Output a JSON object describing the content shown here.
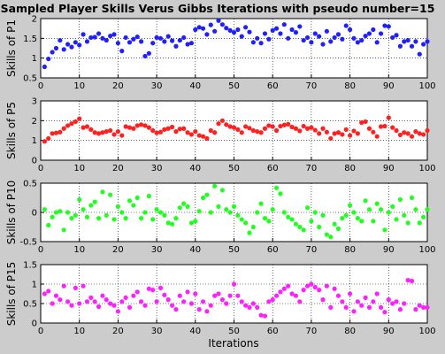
{
  "figure": {
    "title": "Sampled Player Skills Verus Gibbs Iterations with pseudo number=15",
    "xlabel": "Iterations"
  },
  "chart_data": [
    {
      "type": "scatter",
      "ylabel": "Skills of P1",
      "xlim": [
        0,
        100
      ],
      "ylim": [
        0.5,
        2
      ],
      "xticks": [
        "0",
        "10",
        "20",
        "30",
        "40",
        "50",
        "60",
        "70",
        "80",
        "90",
        "100"
      ],
      "yticks": [
        "0.5",
        "1",
        "1.5",
        "2"
      ],
      "grid": true,
      "color": "#2020ff",
      "x": [
        1,
        2,
        3,
        4,
        5,
        6,
        7,
        8,
        9,
        10,
        11,
        12,
        13,
        14,
        15,
        16,
        17,
        18,
        19,
        20,
        21,
        22,
        23,
        24,
        25,
        26,
        27,
        28,
        29,
        30,
        31,
        32,
        33,
        34,
        35,
        36,
        37,
        38,
        39,
        40,
        41,
        42,
        43,
        44,
        45,
        46,
        47,
        48,
        49,
        50,
        51,
        52,
        53,
        54,
        55,
        56,
        57,
        58,
        59,
        60,
        61,
        62,
        63,
        64,
        65,
        66,
        67,
        68,
        69,
        70,
        71,
        72,
        73,
        74,
        75,
        76,
        77,
        78,
        79,
        80,
        81,
        82,
        83,
        84,
        85,
        86,
        87,
        88,
        89,
        90,
        91,
        92,
        93,
        94,
        95,
        96,
        97,
        98,
        99,
        100
      ],
      "y": [
        0.78,
        0.98,
        1.15,
        1.25,
        1.45,
        1.22,
        1.35,
        1.28,
        1.4,
        1.33,
        1.6,
        1.42,
        1.52,
        1.53,
        1.62,
        1.5,
        1.45,
        1.56,
        1.6,
        1.38,
        1.18,
        1.52,
        1.4,
        1.48,
        1.54,
        1.42,
        1.05,
        1.12,
        1.38,
        1.52,
        1.5,
        1.42,
        1.55,
        1.44,
        1.3,
        1.45,
        1.52,
        1.35,
        1.38,
        1.72,
        1.78,
        1.75,
        1.6,
        1.84,
        1.68,
        1.95,
        1.85,
        1.76,
        1.7,
        1.65,
        1.72,
        1.55,
        1.78,
        1.66,
        1.4,
        1.5,
        1.38,
        1.62,
        1.48,
        1.7,
        1.75,
        1.62,
        1.85,
        1.5,
        1.72,
        1.65,
        1.8,
        1.45,
        1.52,
        1.4,
        1.62,
        1.55,
        1.35,
        1.68,
        1.42,
        1.52,
        1.6,
        1.48,
        1.82,
        1.72,
        1.5,
        1.4,
        1.45,
        1.56,
        1.62,
        1.72,
        1.4,
        1.62,
        1.82,
        1.8,
        1.52,
        1.58,
        1.3,
        1.42,
        1.45,
        1.3,
        1.42,
        1.1,
        1.35,
        1.42
      ]
    },
    {
      "type": "scatter",
      "ylabel": "Skills of P5",
      "xlim": [
        0,
        100
      ],
      "ylim": [
        0,
        3
      ],
      "xticks": [
        "0",
        "10",
        "20",
        "30",
        "40",
        "50",
        "60",
        "70",
        "80",
        "90",
        "100"
      ],
      "yticks": [
        "0",
        "1",
        "2",
        "3"
      ],
      "grid": true,
      "color": "#ff2020",
      "x": [
        1,
        2,
        3,
        4,
        5,
        6,
        7,
        8,
        9,
        10,
        11,
        12,
        13,
        14,
        15,
        16,
        17,
        18,
        19,
        20,
        21,
        22,
        23,
        24,
        25,
        26,
        27,
        28,
        29,
        30,
        31,
        32,
        33,
        34,
        35,
        36,
        37,
        38,
        39,
        40,
        41,
        42,
        43,
        44,
        45,
        46,
        47,
        48,
        49,
        50,
        51,
        52,
        53,
        54,
        55,
        56,
        57,
        58,
        59,
        60,
        61,
        62,
        63,
        64,
        65,
        66,
        67,
        68,
        69,
        70,
        71,
        72,
        73,
        74,
        75,
        76,
        77,
        78,
        79,
        80,
        81,
        82,
        83,
        84,
        85,
        86,
        87,
        88,
        89,
        90,
        91,
        92,
        93,
        94,
        95,
        96,
        97,
        98,
        99,
        100
      ],
      "y": [
        0.95,
        1.1,
        1.35,
        1.38,
        1.42,
        1.6,
        1.75,
        1.85,
        1.95,
        2.1,
        1.65,
        1.7,
        1.55,
        1.4,
        1.35,
        1.4,
        1.45,
        1.5,
        1.3,
        1.45,
        1.25,
        1.7,
        1.65,
        1.6,
        1.75,
        1.8,
        1.75,
        1.65,
        1.5,
        1.38,
        1.42,
        1.55,
        1.6,
        1.68,
        1.45,
        1.58,
        1.6,
        1.4,
        1.3,
        1.45,
        1.25,
        1.2,
        1.1,
        1.5,
        1.4,
        1.85,
        2.0,
        1.8,
        1.7,
        1.65,
        1.55,
        1.4,
        1.7,
        1.62,
        1.5,
        1.45,
        1.4,
        1.6,
        1.75,
        1.7,
        1.5,
        1.72,
        1.78,
        1.82,
        1.68,
        1.6,
        1.48,
        1.72,
        1.6,
        1.65,
        1.52,
        1.35,
        1.6,
        1.42,
        1.1,
        1.35,
        1.4,
        1.3,
        1.55,
        1.25,
        1.48,
        1.35,
        1.9,
        1.95,
        1.6,
        1.42,
        1.2,
        1.7,
        1.72,
        2.15,
        1.65,
        1.5,
        1.28,
        1.4,
        1.35,
        1.2,
        1.45,
        1.35,
        1.3,
        1.5
      ]
    },
    {
      "type": "scatter",
      "ylabel": "Skills of P10",
      "xlim": [
        0,
        100
      ],
      "ylim": [
        -0.5,
        0.5
      ],
      "xticks": [
        "0",
        "10",
        "20",
        "30",
        "40",
        "50",
        "60",
        "70",
        "80",
        "90",
        "100"
      ],
      "yticks": [
        "-0.5",
        "0",
        "0.5"
      ],
      "grid": true,
      "color": "#20ff20",
      "x": [
        1,
        2,
        3,
        4,
        5,
        6,
        7,
        8,
        9,
        10,
        11,
        12,
        13,
        14,
        15,
        16,
        17,
        18,
        19,
        20,
        21,
        22,
        23,
        24,
        25,
        26,
        27,
        28,
        29,
        30,
        31,
        32,
        33,
        34,
        35,
        36,
        37,
        38,
        39,
        40,
        41,
        42,
        43,
        44,
        45,
        46,
        47,
        48,
        49,
        50,
        51,
        52,
        53,
        54,
        55,
        56,
        57,
        58,
        59,
        60,
        61,
        62,
        63,
        64,
        65,
        66,
        67,
        68,
        69,
        70,
        71,
        72,
        73,
        74,
        75,
        76,
        77,
        78,
        79,
        80,
        81,
        82,
        83,
        84,
        85,
        86,
        87,
        88,
        89,
        90,
        91,
        92,
        93,
        94,
        95,
        96,
        97,
        98,
        99,
        100
      ],
      "y": [
        0.05,
        -0.22,
        -0.08,
        0.0,
        0.02,
        -0.3,
        0.0,
        -0.1,
        -0.05,
        0.22,
        0.05,
        -0.08,
        0.12,
        0.18,
        -0.1,
        0.35,
        -0.05,
        0.3,
        -0.12,
        0.1,
        0.0,
        -0.1,
        0.2,
        0.12,
        0.25,
        -0.1,
        0.0,
        0.28,
        -0.12,
        0.05,
        0.0,
        -0.05,
        -0.18,
        -0.2,
        -0.1,
        0.08,
        0.15,
        0.1,
        -0.18,
        -0.15,
        0.02,
        0.25,
        0.3,
        0.0,
        0.45,
        0.1,
        0.38,
        0.05,
        0.0,
        0.1,
        -0.05,
        -0.12,
        -0.18,
        -0.35,
        -0.25,
        0.0,
        0.15,
        -0.1,
        -0.15,
        0.05,
        0.42,
        0.32,
        0.0,
        -0.08,
        -0.12,
        -0.2,
        -0.25,
        -0.3,
        0.08,
        -0.15,
        0.0,
        -0.25,
        -0.05,
        -0.38,
        -0.42,
        -0.2,
        -0.28,
        -0.1,
        -0.05,
        0.12,
        0.0,
        -0.1,
        -0.15,
        0.2,
        0.05,
        -0.15,
        0.15,
        0.05,
        -0.3,
        0.0,
        0.1,
        -0.12,
        0.22,
        -0.05,
        -0.18,
        0.25,
        0.05,
        -0.18,
        -0.08,
        0.05
      ]
    },
    {
      "type": "scatter",
      "ylabel": "Skills of P15",
      "xlim": [
        0,
        100
      ],
      "ylim": [
        0,
        1.5
      ],
      "xticks": [
        "0",
        "10",
        "20",
        "30",
        "40",
        "50",
        "60",
        "70",
        "80",
        "90",
        "100"
      ],
      "yticks": [
        "0",
        "0.5",
        "1",
        "1.5"
      ],
      "grid": true,
      "color": "#ff20ff",
      "x": [
        1,
        2,
        3,
        4,
        5,
        6,
        7,
        8,
        9,
        10,
        11,
        12,
        13,
        14,
        15,
        16,
        17,
        18,
        19,
        20,
        21,
        22,
        23,
        24,
        25,
        26,
        27,
        28,
        29,
        30,
        31,
        32,
        33,
        34,
        35,
        36,
        37,
        38,
        39,
        40,
        41,
        42,
        43,
        44,
        45,
        46,
        47,
        48,
        49,
        50,
        51,
        52,
        53,
        54,
        55,
        56,
        57,
        58,
        59,
        60,
        61,
        62,
        63,
        64,
        65,
        66,
        67,
        68,
        69,
        70,
        71,
        72,
        73,
        74,
        75,
        76,
        77,
        78,
        79,
        80,
        81,
        82,
        83,
        84,
        85,
        86,
        87,
        88,
        89,
        90,
        91,
        92,
        93,
        94,
        95,
        96,
        97,
        98,
        99,
        100
      ],
      "y": [
        0.75,
        0.82,
        0.5,
        0.7,
        0.6,
        0.95,
        0.55,
        0.45,
        0.9,
        0.5,
        0.95,
        0.55,
        0.65,
        0.55,
        0.42,
        0.7,
        0.6,
        0.5,
        0.45,
        0.3,
        0.55,
        0.65,
        0.4,
        0.7,
        0.8,
        0.55,
        0.45,
        0.88,
        0.85,
        0.55,
        0.9,
        0.72,
        0.6,
        0.45,
        0.35,
        0.7,
        0.55,
        0.8,
        0.5,
        0.75,
        0.35,
        0.55,
        0.3,
        0.45,
        0.7,
        0.75,
        0.6,
        0.5,
        0.7,
        1.0,
        0.7,
        0.55,
        0.45,
        0.4,
        0.5,
        0.4,
        0.2,
        0.18,
        0.55,
        0.6,
        0.7,
        0.8,
        0.88,
        0.95,
        0.75,
        0.7,
        0.55,
        0.85,
        0.95,
        1.0,
        0.92,
        0.85,
        0.6,
        0.95,
        0.4,
        0.88,
        0.7,
        0.55,
        0.4,
        0.75,
        0.3,
        0.55,
        0.45,
        0.65,
        0.4,
        0.55,
        0.75,
        0.4,
        0.28,
        0.6,
        0.5,
        0.55,
        0.35,
        0.5,
        1.1,
        1.08,
        0.35,
        0.45,
        0.4,
        0.4
      ]
    }
  ]
}
